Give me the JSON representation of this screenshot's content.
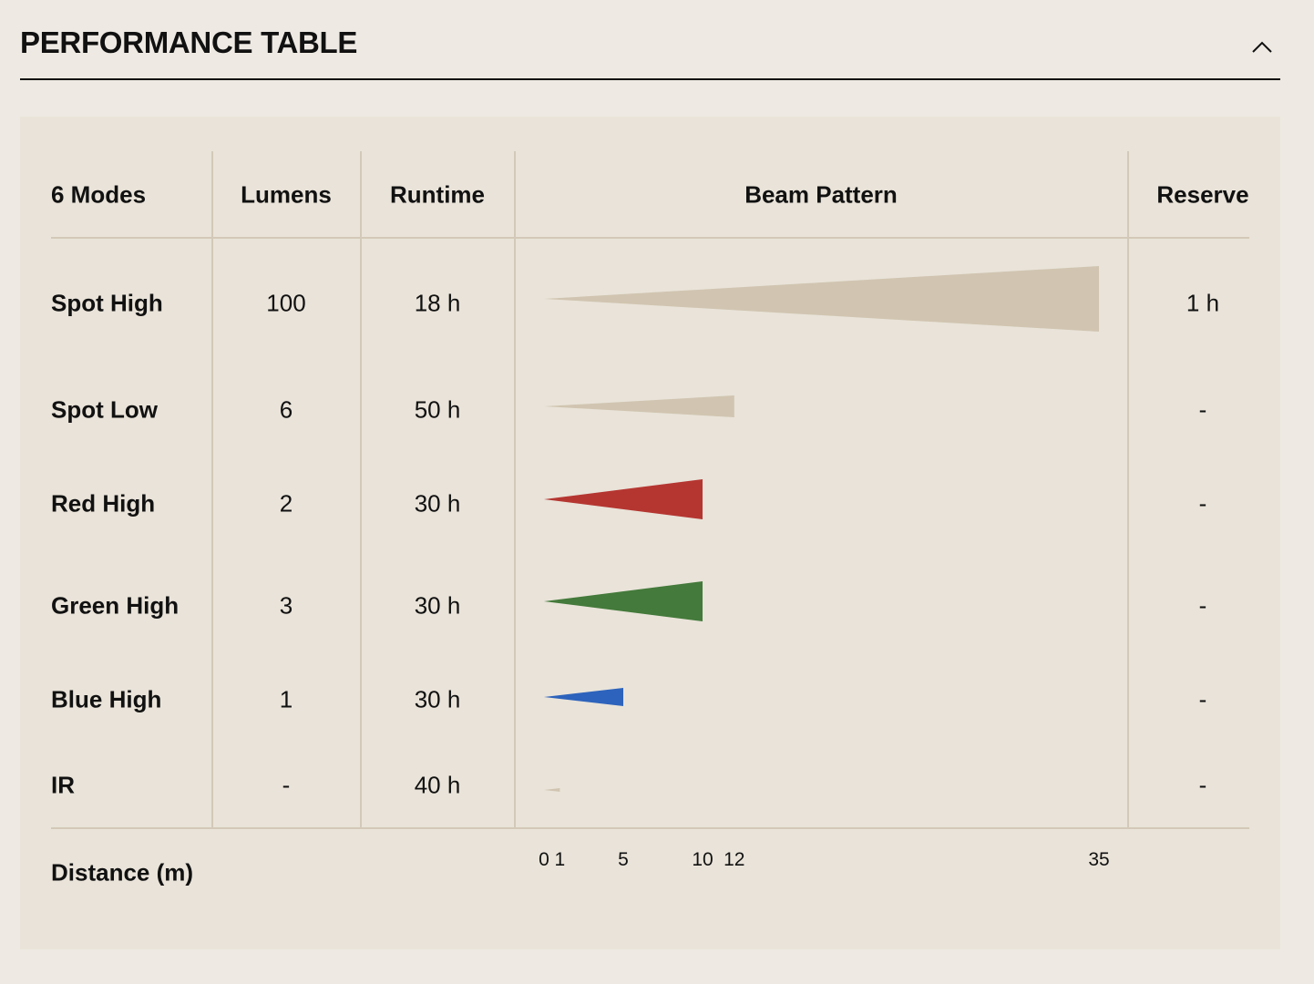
{
  "header": {
    "title": "PERFORMANCE TABLE",
    "collapse_icon": "chevron-up-icon"
  },
  "table": {
    "headers": {
      "modes": "6 Modes",
      "lumens": "Lumens",
      "runtime": "Runtime",
      "beam": "Beam Pattern",
      "reserve": "Reserve"
    },
    "rows": [
      {
        "mode": "Spot High",
        "lumens": "100",
        "runtime": "18 h",
        "reserve": "1 h",
        "beam_distance_m": 35,
        "beam_color": "#d1c5b1"
      },
      {
        "mode": "Spot Low",
        "lumens": "6",
        "runtime": "50 h",
        "reserve": "-",
        "beam_distance_m": 12,
        "beam_color": "#d1c5b1"
      },
      {
        "mode": "Red High",
        "lumens": "2",
        "runtime": "30 h",
        "reserve": "-",
        "beam_distance_m": 10,
        "beam_color": "#b53631"
      },
      {
        "mode": "Green High",
        "lumens": "3",
        "runtime": "30 h",
        "reserve": "-",
        "beam_distance_m": 10,
        "beam_color": "#447a3b"
      },
      {
        "mode": "Blue High",
        "lumens": "1",
        "runtime": "30 h",
        "reserve": "-",
        "beam_distance_m": 5,
        "beam_color": "#2d63bc"
      },
      {
        "mode": "IR",
        "lumens": "-",
        "runtime": "40 h",
        "reserve": "-",
        "beam_distance_m": 1,
        "beam_color": "#d1c5b1"
      }
    ],
    "distance_label": "Distance (m)",
    "distance_ticks": [
      "0",
      "1",
      "5",
      "10",
      "12",
      "35"
    ]
  },
  "colors": {
    "background": "#eeeae3",
    "panel": "#e9e3d9",
    "grid": "#d3c9b8"
  }
}
